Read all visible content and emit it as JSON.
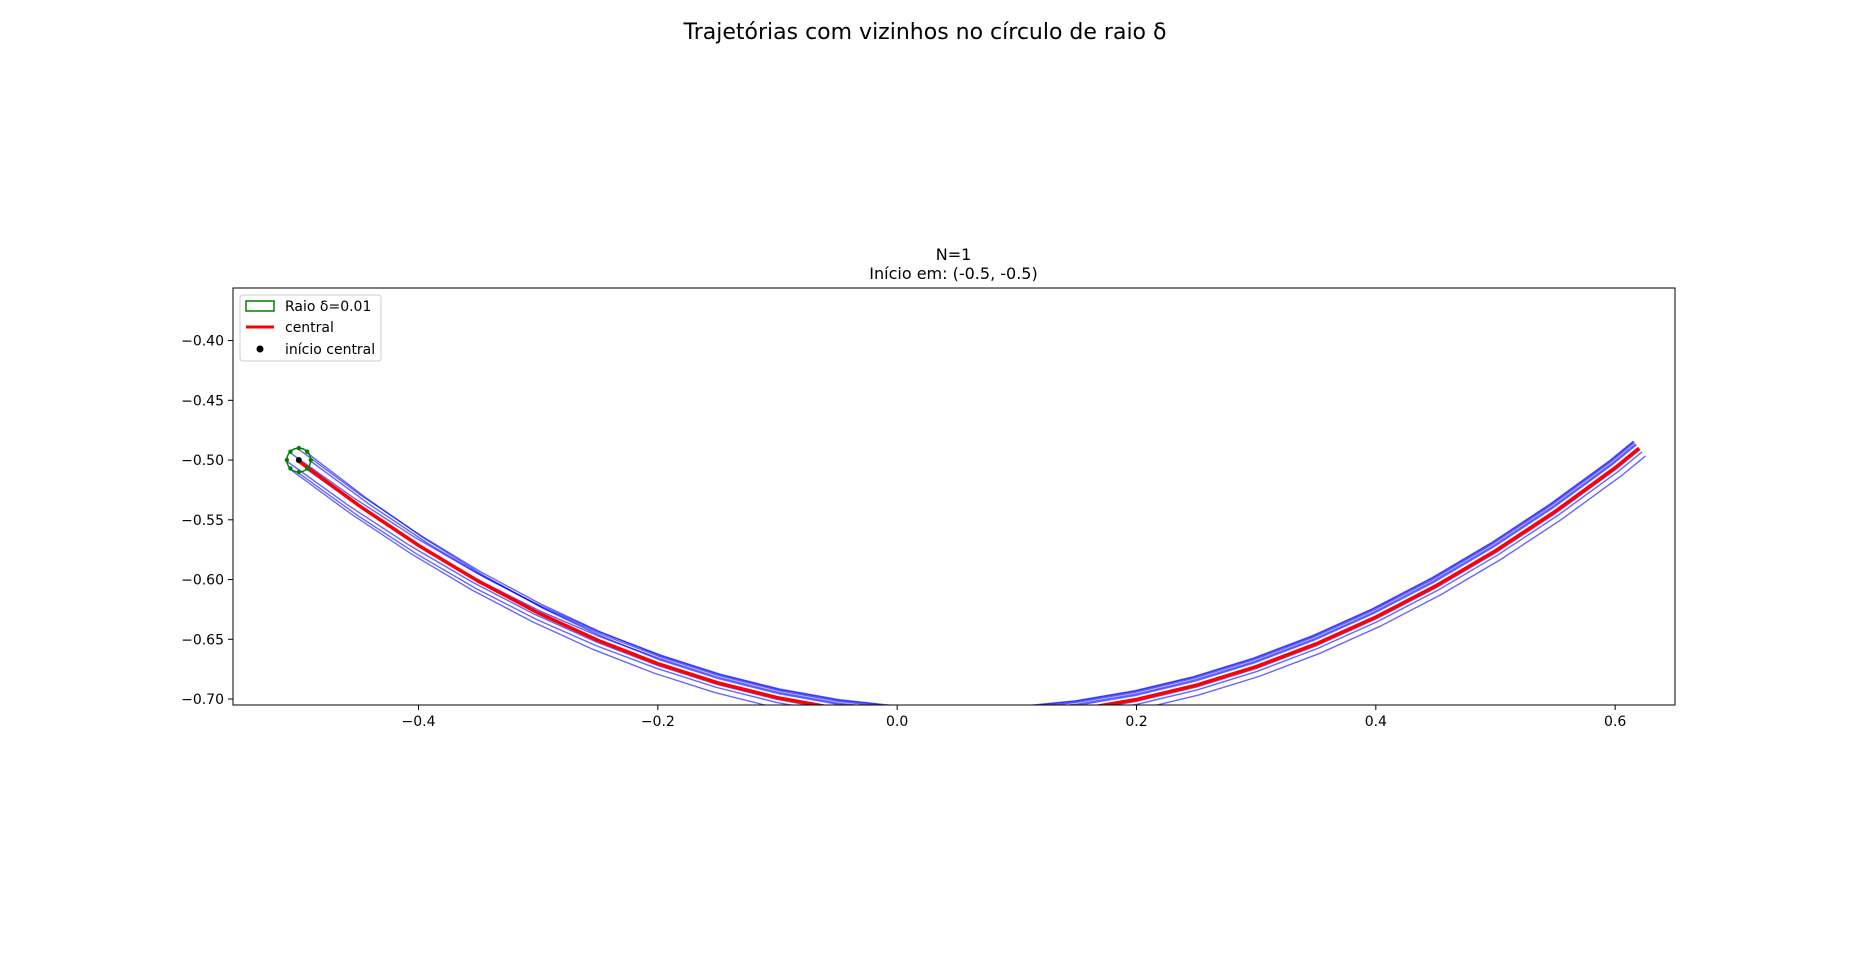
{
  "figure": {
    "suptitle": "Trajetórias com vizinhos no círculo de raio δ"
  },
  "chart_data": {
    "type": "line",
    "title_line1": "N=1",
    "title_line2": "Início em: (-0.5, -0.5)",
    "xlabel": "",
    "ylabel": "",
    "xlim": [
      -0.555,
      0.65
    ],
    "ylim": [
      -0.705,
      -0.356
    ],
    "xticks": [
      -0.4,
      -0.2,
      0.0,
      0.2,
      0.4,
      0.6
    ],
    "xtick_labels": [
      "−0.4",
      "−0.2",
      "0.0",
      "0.2",
      "0.4",
      "0.6"
    ],
    "yticks": [
      -0.4,
      -0.45,
      -0.5,
      -0.55,
      -0.6,
      -0.65,
      -0.7
    ],
    "ytick_labels": [
      "−0.40",
      "−0.45",
      "−0.50",
      "−0.55",
      "−0.60",
      "−0.65",
      "−0.70"
    ],
    "grid": false,
    "legend_position": "upper-left",
    "legend": [
      {
        "label": "Raio δ=0.01",
        "kind": "patch",
        "color": "#008000"
      },
      {
        "label": "central",
        "kind": "line",
        "color": "#ff0000"
      },
      {
        "label": "início central",
        "kind": "marker",
        "color": "#000000"
      }
    ],
    "start_point": {
      "x": -0.5,
      "y": -0.5
    },
    "delta": 0.01,
    "central": {
      "name": "central",
      "color": "#ff0000",
      "x": [
        -0.5,
        -0.45,
        -0.4,
        -0.35,
        -0.3,
        -0.25,
        -0.2,
        -0.15,
        -0.1,
        -0.05,
        0.0,
        0.05,
        0.1,
        0.15,
        0.2,
        0.25,
        0.3,
        0.35,
        0.4,
        0.45,
        0.5,
        0.55,
        0.6,
        0.62
      ],
      "y": [
        -0.501,
        -0.5379,
        -0.5714,
        -0.6014,
        -0.6279,
        -0.6509,
        -0.6704,
        -0.6864,
        -0.6989,
        -0.7079,
        -0.7134,
        -0.7154,
        -0.7139,
        -0.7089,
        -0.7004,
        -0.6884,
        -0.6729,
        -0.6539,
        -0.6314,
        -0.6054,
        -0.5759,
        -0.5429,
        -0.5064,
        -0.49
      ]
    },
    "neighbors": {
      "color": "#0000ff",
      "count": 8,
      "offsets": [
        {
          "dx": 0.007,
          "dy": 0.007
        },
        {
          "dx": 0.007,
          "dy": -0.007
        },
        {
          "dx": 0.01,
          "dy": 0.0
        },
        {
          "dx": -0.01,
          "dy": 0.0
        },
        {
          "dx": 0.0,
          "dy": 0.01
        },
        {
          "dx": 0.0,
          "dy": -0.01
        },
        {
          "dx": -0.007,
          "dy": 0.007
        },
        {
          "dx": -0.007,
          "dy": -0.007
        }
      ],
      "spreads": [
        0.0035,
        0.0045,
        0.006,
        -0.0015,
        0.007,
        -0.004,
        0.0075,
        -0.0085
      ]
    }
  }
}
